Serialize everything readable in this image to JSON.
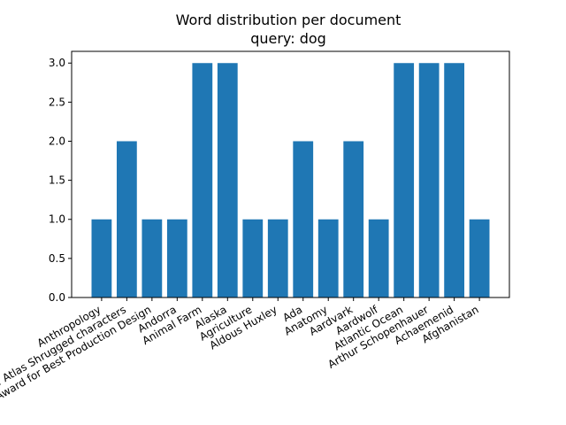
{
  "chart_data": {
    "type": "bar",
    "title": "Word distribution per document",
    "subtitle": "query: dog",
    "xlabel": "",
    "ylabel": "",
    "ylim": [
      0,
      3.15
    ],
    "yticks": [
      "0.0",
      "0.5",
      "1.0",
      "1.5",
      "2.0",
      "2.5",
      "3.0"
    ],
    "categories": [
      "Anthropology",
      "List of Atlas Shrugged characters",
      "Academy Award for Best Production Design",
      "Andorra",
      "Animal Farm",
      "Alaska",
      "Agriculture",
      "Aldous Huxley",
      "Ada",
      "Anatomy",
      "Aardvark",
      "Aardwolf",
      "Atlantic Ocean",
      "Arthur Schopenhauer",
      "Achaemenid",
      "Afghanistan"
    ],
    "values": [
      1,
      2,
      1,
      1,
      3,
      3,
      1,
      1,
      2,
      1,
      2,
      1,
      3,
      3,
      3,
      1
    ],
    "bar_color": "#1f77b4",
    "grid": false,
    "legend": "none"
  }
}
